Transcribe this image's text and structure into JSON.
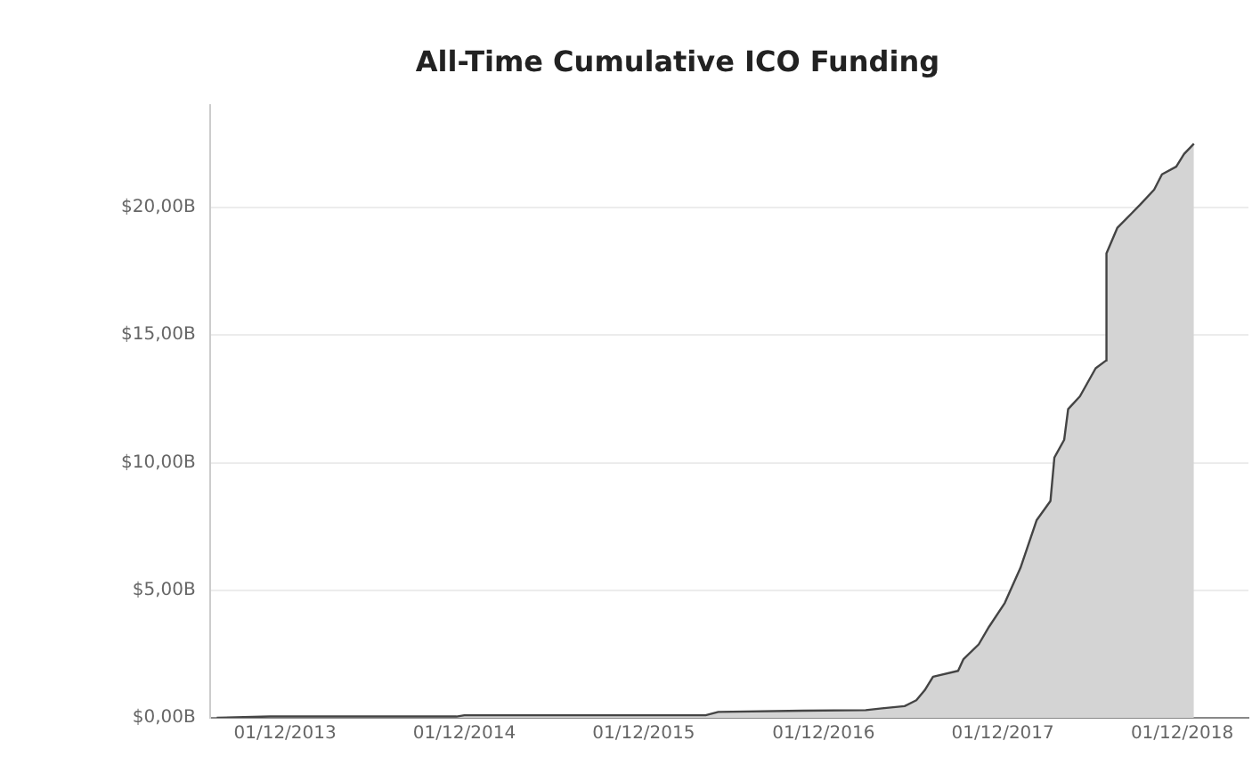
{
  "chart_data": {
    "type": "area",
    "title": "All-Time Cumulative ICO Funding",
    "x": [
      "2013-07-15",
      "2013-11-01",
      "2014-11-15",
      "2014-12-01",
      "2016-04-05",
      "2016-05-01",
      "2016-10-20",
      "2017-02-25",
      "2017-03-30",
      "2017-05-15",
      "2017-06-08",
      "2017-06-25",
      "2017-07-12",
      "2017-09-01",
      "2017-09-12",
      "2017-10-13",
      "2017-11-03",
      "2017-12-05",
      "2018-01-06",
      "2018-02-08",
      "2018-03-08",
      "2018-03-16",
      "2018-04-05",
      "2018-04-13",
      "2018-05-07",
      "2018-06-08",
      "2018-06-29",
      "2018-06-30",
      "2018-07-22",
      "2018-09-06",
      "2018-10-05",
      "2018-10-21",
      "2018-11-19",
      "2018-12-05",
      "2018-12-25"
    ],
    "series": [
      {
        "color": "#444444",
        "values": [
          0,
          0.05,
          0.05,
          0.1,
          0.1,
          0.23,
          0.28,
          0.3,
          0.37,
          0.46,
          0.69,
          1.08,
          1.61,
          1.84,
          2.3,
          2.88,
          3.57,
          4.5,
          5.88,
          7.75,
          8.5,
          10.2,
          10.9,
          12.1,
          12.6,
          13.7,
          14.0,
          18.2,
          19.2,
          20.1,
          20.7,
          21.3,
          21.6,
          22.1,
          22.5
        ]
      }
    ],
    "xlim": [
      "2013-07-01",
      "2019-04-15"
    ],
    "xticks": [
      {
        "value": "2013-12-01",
        "label": "01/12/2013"
      },
      {
        "value": "2014-12-01",
        "label": "01/12/2014"
      },
      {
        "value": "2015-12-01",
        "label": "01/12/2015"
      },
      {
        "value": "2016-12-01",
        "label": "01/12/2016"
      },
      {
        "value": "2017-12-01",
        "label": "01/12/2017"
      },
      {
        "value": "2018-12-01",
        "label": "01/12/2018"
      }
    ],
    "ylim": [
      0,
      24
    ],
    "yticks": [
      {
        "value": 0,
        "label": "$0,00B"
      },
      {
        "value": 5,
        "label": "$5,00B"
      },
      {
        "value": 10,
        "label": "$10,00B"
      },
      {
        "value": 15,
        "label": "$15,00B"
      },
      {
        "value": 20,
        "label": "$20,00B"
      }
    ],
    "grid": "y",
    "legend": false,
    "marker": "none",
    "line_style": "solid"
  }
}
